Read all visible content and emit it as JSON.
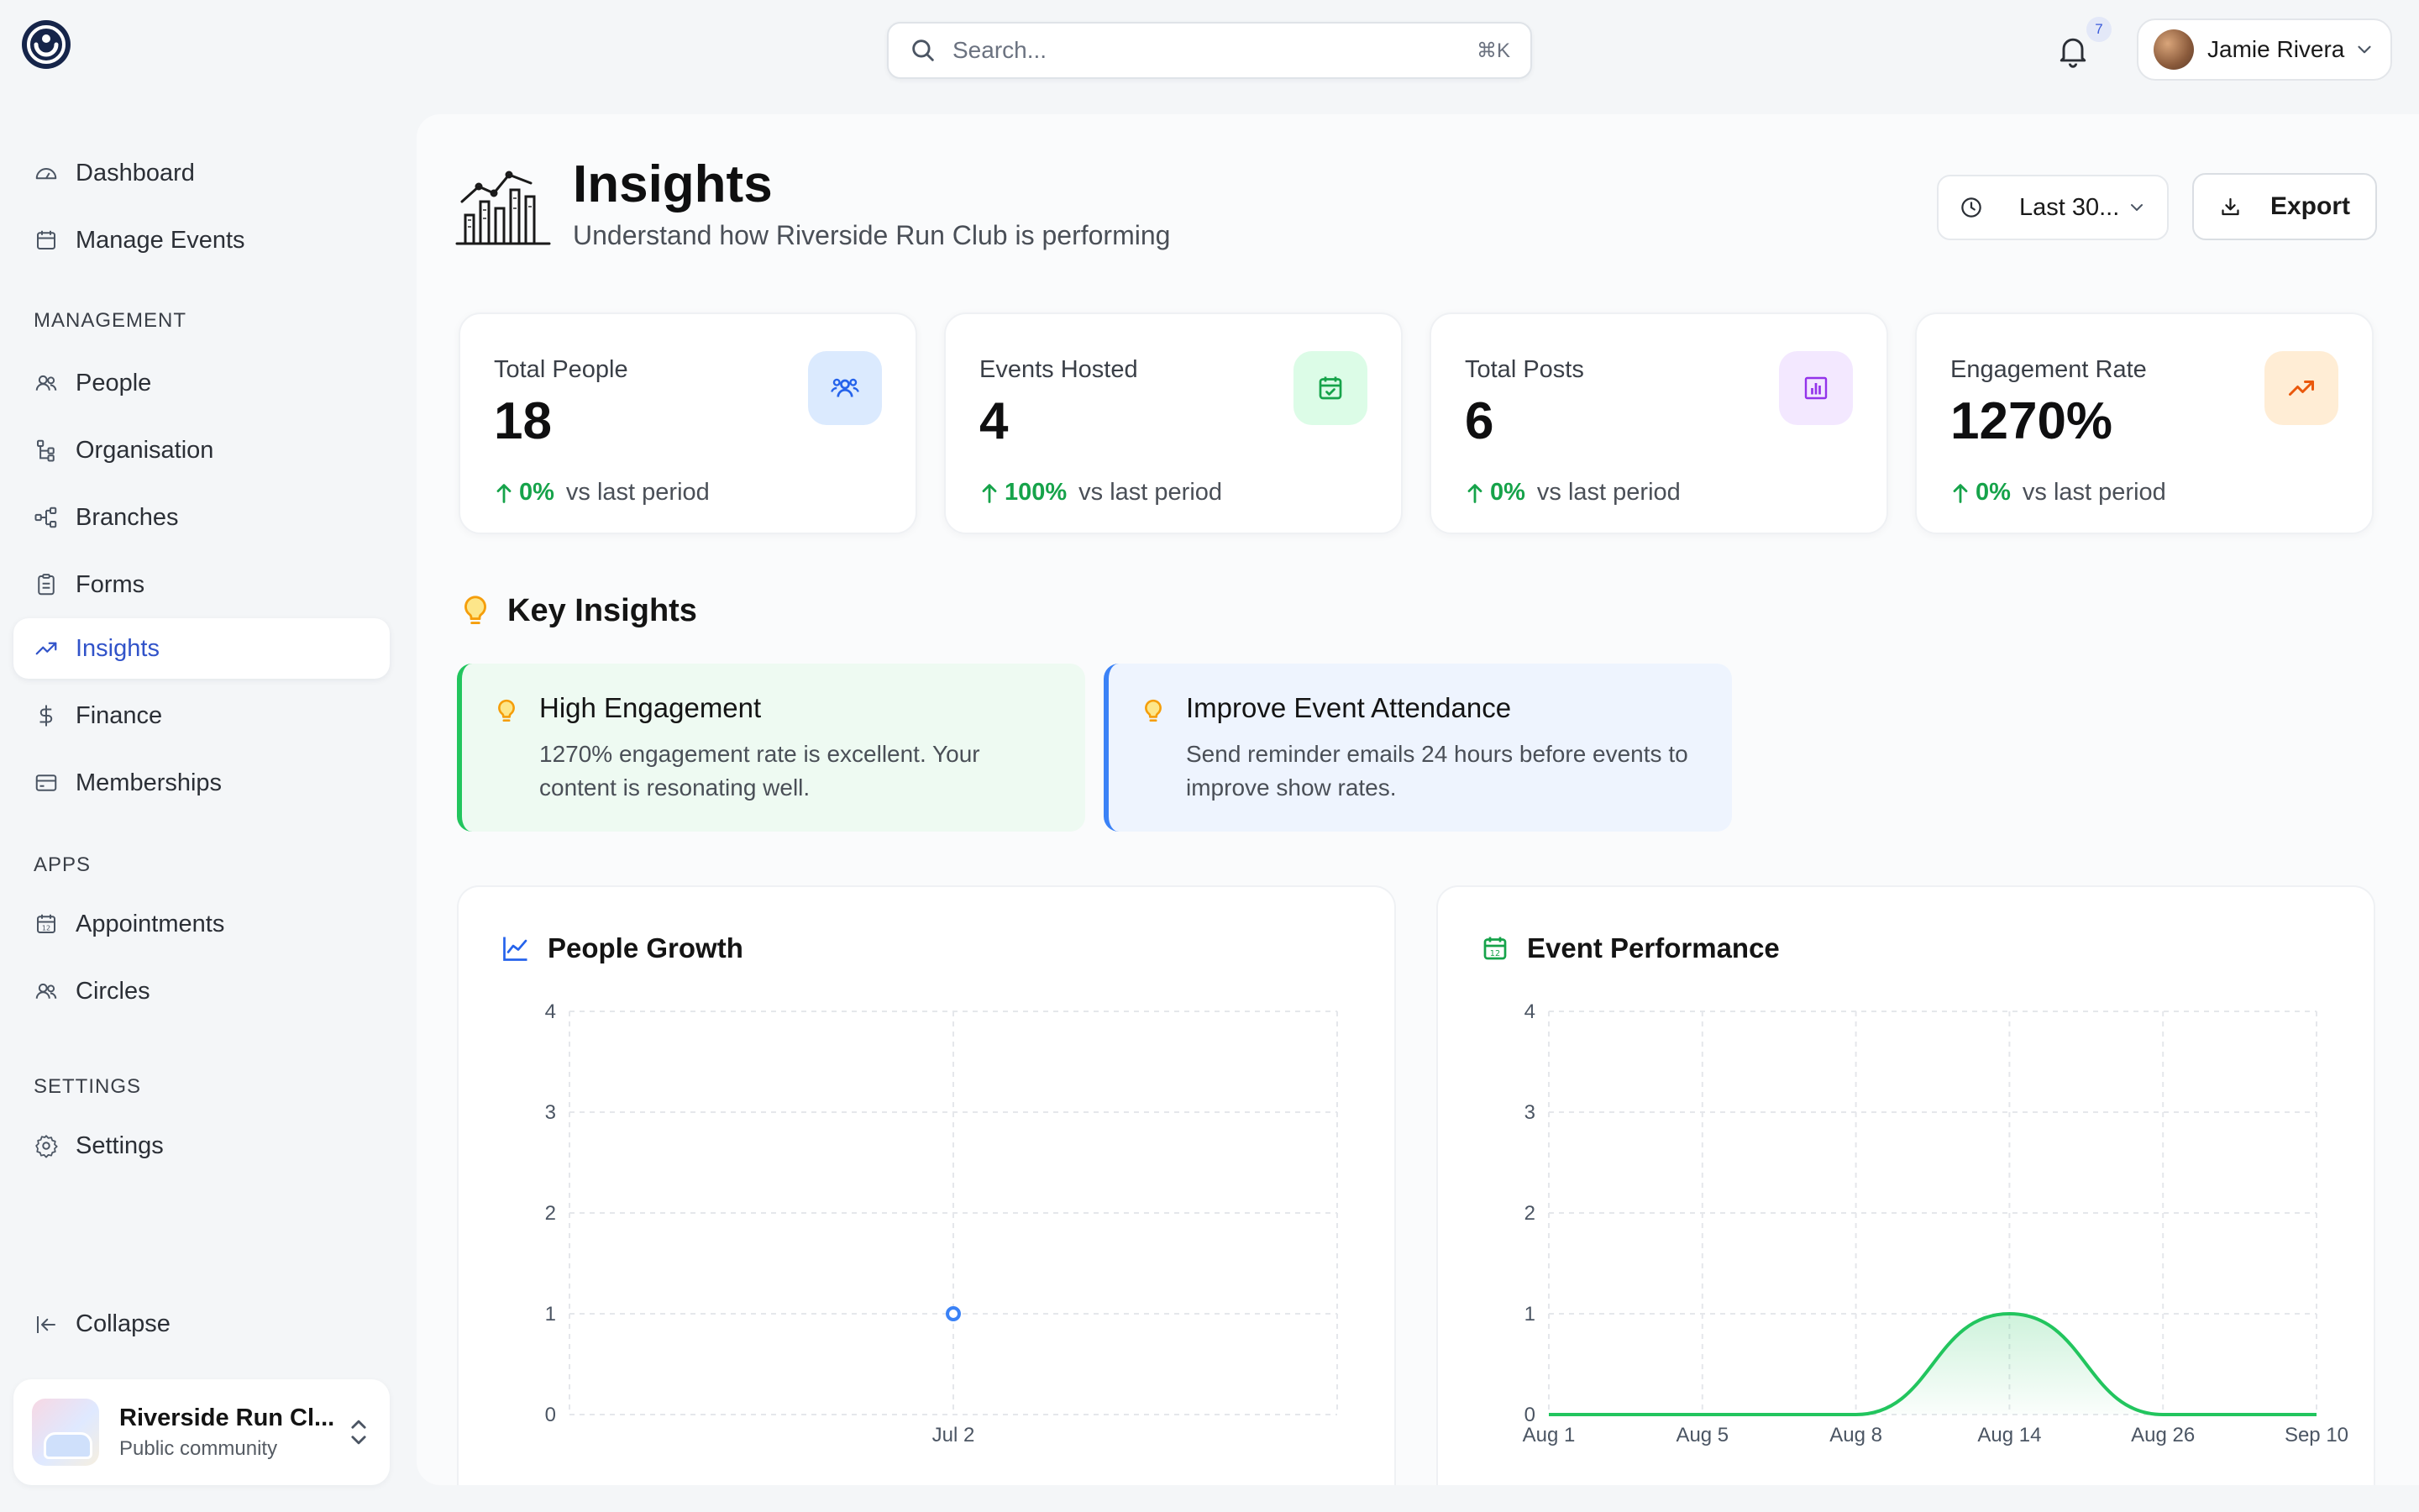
{
  "topbar": {
    "search_placeholder": "Search...",
    "search_shortcut": "⌘K",
    "notification_count": "7",
    "user_name": "Jamie Rivera"
  },
  "sidebar": {
    "primary": [
      {
        "label": "Dashboard",
        "icon": "gauge-icon"
      },
      {
        "label": "Manage Events",
        "icon": "calendar-icon"
      }
    ],
    "sections": [
      {
        "title": "MANAGEMENT",
        "items": [
          {
            "label": "People",
            "icon": "people-icon"
          },
          {
            "label": "Organisation",
            "icon": "org-tree-icon"
          },
          {
            "label": "Branches",
            "icon": "branches-icon"
          },
          {
            "label": "Forms",
            "icon": "clipboard-icon"
          },
          {
            "label": "Insights",
            "icon": "trending-up-icon",
            "active": true
          },
          {
            "label": "Finance",
            "icon": "dollar-icon"
          },
          {
            "label": "Memberships",
            "icon": "card-icon"
          }
        ]
      },
      {
        "title": "APPS",
        "items": [
          {
            "label": "Appointments",
            "icon": "calendar-12-icon"
          },
          {
            "label": "Circles",
            "icon": "people-icon"
          }
        ]
      },
      {
        "title": "SETTINGS",
        "items": [
          {
            "label": "Settings",
            "icon": "gear-icon"
          }
        ]
      }
    ],
    "collapse_label": "Collapse",
    "org": {
      "name": "Riverside Run Cl...",
      "subtitle": "Public community"
    }
  },
  "header": {
    "title": "Insights",
    "subtitle": "Understand how Riverside Run Club is performing",
    "range_label": "Last 30...",
    "export_label": "Export"
  },
  "stats": [
    {
      "label": "Total People",
      "value": "18",
      "change": "0%",
      "suffix": "vs last period",
      "icon": "people-icon",
      "icon_bg": "#dbeafe",
      "icon_color": "#2563eb"
    },
    {
      "label": "Events Hosted",
      "value": "4",
      "change": "100%",
      "suffix": "vs last period",
      "icon": "calendar-check-icon",
      "icon_bg": "#dcfce7",
      "icon_color": "#16a34a"
    },
    {
      "label": "Total Posts",
      "value": "6",
      "change": "0%",
      "suffix": "vs last period",
      "icon": "bar-chart-icon",
      "icon_bg": "#f3e8ff",
      "icon_color": "#9333ea"
    },
    {
      "label": "Engagement Rate",
      "value": "1270%",
      "change": "0%",
      "suffix": "vs last period",
      "icon": "trending-up-icon",
      "icon_bg": "#ffedd5",
      "icon_color": "#ea580c"
    }
  ],
  "key_insights": {
    "title": "Key Insights",
    "cards": [
      {
        "title": "High Engagement",
        "text": "1270% engagement rate is excellent. Your content is resonating well.",
        "accent": "#22c55e"
      },
      {
        "title": "Improve Event Attendance",
        "text": "Send reminder emails 24 hours before events to improve show rates.",
        "accent": "#3b82f6"
      }
    ]
  },
  "chart_data": [
    {
      "type": "scatter",
      "title": "People Growth",
      "x": [
        "Jul 2"
      ],
      "y": [
        1
      ],
      "ylim": [
        0,
        4
      ],
      "yticks": [
        0,
        1,
        2,
        3,
        4
      ],
      "grid": true,
      "color": "#3b82f6"
    },
    {
      "type": "area",
      "title": "Event Performance",
      "categories": [
        "Aug 1",
        "Aug 5",
        "Aug 8",
        "Aug 14",
        "Aug 26",
        "Sep 10"
      ],
      "values": [
        0,
        0,
        0,
        1,
        0,
        0
      ],
      "ylim": [
        0,
        4
      ],
      "yticks": [
        0,
        1,
        2,
        3,
        4
      ],
      "grid": true,
      "color": "#22c55e"
    }
  ]
}
